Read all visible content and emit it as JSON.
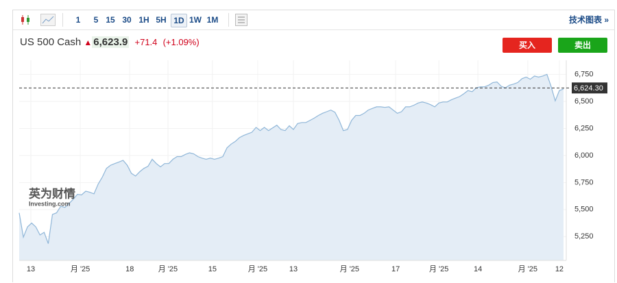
{
  "toolbar": {
    "intervals": [
      "1",
      "5",
      "15",
      "30",
      "1H",
      "5H",
      "1D",
      "1W",
      "1M"
    ],
    "selected_interval": 6,
    "tech_chart": "技术图表 »"
  },
  "header": {
    "name": "US 500 Cash",
    "price": "6,623.9",
    "change": "+71.4",
    "change_pct": "(+1.09%)",
    "buy": "买入",
    "sell": "卖出"
  },
  "watermark": {
    "brand": "英为财情",
    "site": "Investing.com"
  },
  "chart_data": {
    "type": "area",
    "color": "#8fb6d8",
    "fill": "#e4edf6",
    "grid": true,
    "values": [
      5470,
      5245,
      5340,
      5375,
      5340,
      5265,
      5290,
      5185,
      5455,
      5470,
      5530,
      5520,
      5555,
      5595,
      5640,
      5635,
      5670,
      5660,
      5645,
      5735,
      5800,
      5880,
      5910,
      5925,
      5940,
      5955,
      5910,
      5835,
      5810,
      5850,
      5880,
      5900,
      5965,
      5925,
      5895,
      5925,
      5925,
      5965,
      5990,
      5990,
      6010,
      6025,
      6015,
      5990,
      5975,
      5965,
      5975,
      5965,
      5975,
      5990,
      6070,
      6105,
      6130,
      6165,
      6185,
      6200,
      6215,
      6260,
      6230,
      6260,
      6230,
      6255,
      6280,
      6240,
      6230,
      6275,
      6240,
      6295,
      6305,
      6305,
      6325,
      6345,
      6370,
      6390,
      6405,
      6420,
      6400,
      6325,
      6230,
      6240,
      6325,
      6370,
      6370,
      6390,
      6420,
      6435,
      6450,
      6450,
      6445,
      6450,
      6420,
      6390,
      6405,
      6450,
      6450,
      6465,
      6485,
      6495,
      6485,
      6470,
      6450,
      6485,
      6495,
      6495,
      6515,
      6530,
      6545,
      6570,
      6600,
      6590,
      6625,
      6635,
      6635,
      6650,
      6675,
      6680,
      6640,
      6625,
      6650,
      6660,
      6675,
      6710,
      6725,
      6705,
      6735,
      6725,
      6735,
      6750,
      6640,
      6505,
      6600,
      6615
    ],
    "ylim": [
      5030,
      6880
    ],
    "yticks": [
      {
        "value": 5250,
        "label": "5,250"
      },
      {
        "value": 5500,
        "label": "5,500"
      },
      {
        "value": 5750,
        "label": "5,750"
      },
      {
        "value": 6000,
        "label": "6,000"
      },
      {
        "value": 6250,
        "label": "6,250"
      },
      {
        "value": 6500,
        "label": "6,500"
      },
      {
        "value": 6750,
        "label": "6,750"
      }
    ],
    "xticks": [
      {
        "value": 2.8,
        "label": "13"
      },
      {
        "value": 14.7,
        "label": "月 '25"
      },
      {
        "value": 26.6,
        "label": "18"
      },
      {
        "value": 35.8,
        "label": "月 '25"
      },
      {
        "value": 46.5,
        "label": "15"
      },
      {
        "value": 57.4,
        "label": "月 '25"
      },
      {
        "value": 66,
        "label": "13"
      },
      {
        "value": 79.5,
        "label": "月 '25"
      },
      {
        "value": 90.6,
        "label": "17"
      },
      {
        "value": 101,
        "label": "月 '25"
      },
      {
        "value": 110.4,
        "label": "14"
      },
      {
        "value": 122.4,
        "label": "月 '25"
      },
      {
        "value": 130,
        "label": "12"
      }
    ],
    "last_price": {
      "value": 6624.3,
      "label": "6,624.30"
    }
  }
}
